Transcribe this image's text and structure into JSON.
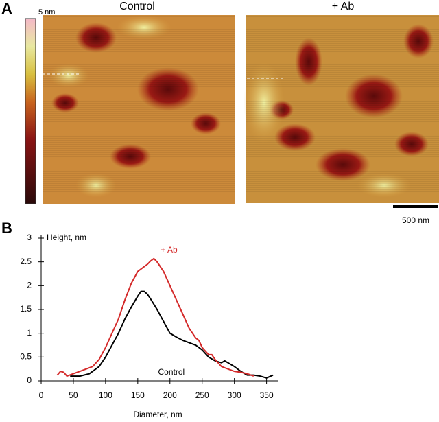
{
  "panel_labels": [
    "A",
    "B"
  ],
  "images": {
    "titles": [
      "Control",
      "+ Ab"
    ],
    "colorbar_label": "5 nm",
    "scale_bar": "500 nm"
  },
  "chart_data": {
    "type": "line",
    "ylabel": "Height, nm",
    "xlabel": "Diameter, nm",
    "xlim": [
      0,
      360
    ],
    "xticks": [
      0,
      50,
      100,
      150,
      200,
      250,
      300,
      350
    ],
    "ylim": [
      0,
      3
    ],
    "yticks": [
      0,
      0.5,
      1,
      1.5,
      2,
      2.5,
      3
    ],
    "series": [
      {
        "name": "Control",
        "color": "#000000",
        "x": [
          45,
          60,
          75,
          90,
          100,
          110,
          120,
          130,
          140,
          150,
          155,
          160,
          165,
          170,
          180,
          190,
          200,
          210,
          220,
          230,
          240,
          250,
          260,
          270,
          280,
          285,
          290,
          300,
          310,
          320,
          330,
          340,
          350,
          360
        ],
        "values": [
          0.1,
          0.1,
          0.15,
          0.3,
          0.5,
          0.75,
          1.0,
          1.3,
          1.55,
          1.78,
          1.88,
          1.88,
          1.82,
          1.72,
          1.5,
          1.25,
          1.0,
          0.92,
          0.85,
          0.8,
          0.75,
          0.65,
          0.5,
          0.42,
          0.38,
          0.42,
          0.38,
          0.3,
          0.2,
          0.12,
          0.12,
          0.1,
          0.06,
          0.12
        ]
      },
      {
        "name": "+ Ab",
        "color": "#d42a2a",
        "x": [
          25,
          30,
          35,
          40,
          50,
          60,
          70,
          80,
          90,
          100,
          110,
          120,
          130,
          140,
          150,
          155,
          160,
          165,
          170,
          175,
          180,
          190,
          200,
          210,
          220,
          230,
          240,
          245,
          250,
          260,
          265,
          270,
          280,
          290,
          300,
          310,
          320,
          330
        ],
        "values": [
          0.12,
          0.2,
          0.18,
          0.1,
          0.15,
          0.2,
          0.25,
          0.3,
          0.45,
          0.7,
          1.0,
          1.3,
          1.7,
          2.05,
          2.3,
          2.35,
          2.4,
          2.45,
          2.52,
          2.57,
          2.5,
          2.3,
          2.0,
          1.7,
          1.4,
          1.1,
          0.9,
          0.85,
          0.7,
          0.55,
          0.55,
          0.45,
          0.3,
          0.25,
          0.2,
          0.18,
          0.15,
          0.1
        ]
      }
    ]
  }
}
